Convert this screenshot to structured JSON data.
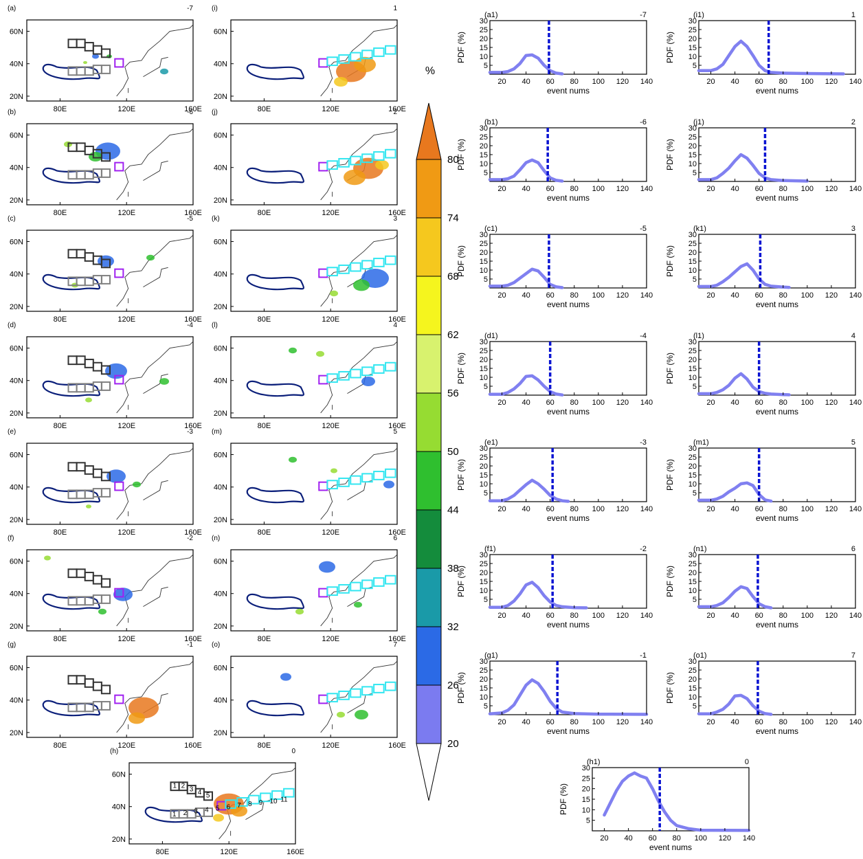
{
  "figure": {
    "map_panel_labels": [
      "(a)",
      "(b)",
      "(c)",
      "(d)",
      "(e)",
      "(f)",
      "(g)",
      "(i)",
      "(j)",
      "(k)",
      "(l)",
      "(m)",
      "(n)",
      "(o)",
      "(h)"
    ],
    "map_panel_days": [
      "-7",
      "-6",
      "-5",
      "-4",
      "-3",
      "-2",
      "-1",
      "1",
      "2",
      "3",
      "4",
      "5",
      "6",
      "7",
      "0"
    ],
    "map_lat_ticks": [
      "60N",
      "40N",
      "20N"
    ],
    "map_lon_ticks": [
      "80E",
      "120E",
      "160E"
    ],
    "box_numbers_grey": [
      "1",
      "2",
      "3",
      "4",
      "5"
    ],
    "box_numbers_lower": [
      "1",
      "2",
      "3",
      "4",
      "5",
      "6",
      "7",
      "8",
      "9",
      "10",
      "11"
    ]
  },
  "colorbar": {
    "unit": "%",
    "levels": [
      "20",
      "26",
      "32",
      "38",
      "44",
      "50",
      "56",
      "62",
      "68",
      "74",
      "80"
    ],
    "colors": [
      "#ffffff",
      "#7b7bf0",
      "#2b6ae6",
      "#1a9aa8",
      "#148c3c",
      "#2fbf2f",
      "#96dc32",
      "#d8f26e",
      "#f5f51e",
      "#f5c81e",
      "#f09a14",
      "#e8781e"
    ]
  },
  "chart_data": {
    "type": "line",
    "xlabel": "event nums",
    "ylabel": "PDF (%)",
    "xlim": [
      10,
      140
    ],
    "ylim": [
      0,
      30
    ],
    "xticks": [
      "20",
      "40",
      "60",
      "80",
      "100",
      "120",
      "140"
    ],
    "yticks": [
      "5",
      "10",
      "15",
      "20",
      "25",
      "30"
    ],
    "line_color": "#8080f0",
    "threshold_color": "#0a14d2",
    "panels": [
      {
        "label": "(a1)",
        "day": "-7",
        "threshold": 59,
        "x": [
          10,
          20,
          25,
          30,
          35,
          40,
          45,
          50,
          55,
          60,
          65,
          70
        ],
        "y": [
          1,
          1,
          1.5,
          3,
          6,
          10.5,
          10.8,
          9,
          5,
          2,
          0.6,
          0.2
        ]
      },
      {
        "label": "(b1)",
        "day": "-6",
        "threshold": 58,
        "x": [
          10,
          20,
          25,
          30,
          35,
          40,
          45,
          50,
          55,
          60,
          65,
          70
        ],
        "y": [
          1,
          1,
          1.5,
          3,
          6.5,
          10.5,
          12,
          10.5,
          6,
          2,
          0.6,
          0.2
        ]
      },
      {
        "label": "(c1)",
        "day": "-5",
        "threshold": 59,
        "x": [
          10,
          20,
          25,
          30,
          35,
          40,
          45,
          50,
          55,
          60,
          65,
          70
        ],
        "y": [
          1,
          1,
          1.5,
          3,
          5.5,
          8,
          10.5,
          9.5,
          6,
          2,
          0.6,
          0.2
        ]
      },
      {
        "label": "(d1)",
        "day": "-4",
        "threshold": 60,
        "x": [
          10,
          20,
          25,
          30,
          35,
          40,
          45,
          50,
          55,
          60,
          65,
          70
        ],
        "y": [
          0.5,
          0.5,
          1.5,
          3.5,
          6.5,
          10.5,
          10.8,
          8.5,
          5,
          2,
          0.6,
          0.1
        ]
      },
      {
        "label": "(e1)",
        "day": "-3",
        "threshold": 62,
        "x": [
          10,
          20,
          25,
          30,
          35,
          40,
          45,
          50,
          55,
          60,
          65,
          70,
          75
        ],
        "y": [
          0.5,
          0.5,
          1.5,
          3.5,
          6.5,
          9.5,
          12,
          10,
          7,
          3.5,
          1.5,
          0.5,
          0.2
        ]
      },
      {
        "label": "(f1)",
        "day": "-2",
        "threshold": 62,
        "x": [
          10,
          20,
          25,
          30,
          35,
          40,
          45,
          50,
          55,
          60,
          65,
          70,
          80,
          90
        ],
        "y": [
          0.5,
          0.5,
          1.5,
          4,
          8,
          13,
          14.5,
          11.5,
          7,
          3.5,
          1.5,
          0.8,
          0.3,
          0.2
        ]
      },
      {
        "label": "(g1)",
        "day": "-1",
        "threshold": 66,
        "x": [
          10,
          20,
          25,
          30,
          35,
          40,
          45,
          50,
          55,
          60,
          65,
          70,
          80,
          100,
          140
        ],
        "y": [
          0.5,
          1,
          2.5,
          5.5,
          11,
          16.5,
          19.5,
          17.5,
          13,
          7.5,
          3.5,
          1.5,
          0.6,
          0.3,
          0.2
        ]
      },
      {
        "label": "(i1)",
        "day": "1",
        "threshold": 68,
        "x": [
          10,
          20,
          25,
          30,
          35,
          40,
          45,
          50,
          55,
          60,
          65,
          70,
          80,
          100,
          130
        ],
        "y": [
          2,
          2,
          3,
          5.5,
          10.5,
          15.5,
          18.5,
          15.5,
          10.5,
          5,
          2,
          1,
          0.6,
          0.4,
          0.2
        ]
      },
      {
        "label": "(j1)",
        "day": "2",
        "threshold": 65,
        "x": [
          10,
          20,
          25,
          30,
          35,
          40,
          45,
          50,
          55,
          60,
          65,
          70,
          80,
          100
        ],
        "y": [
          1,
          1,
          2,
          4.5,
          7.5,
          11.5,
          15,
          13,
          9,
          4.5,
          2,
          1,
          0.5,
          0.2
        ]
      },
      {
        "label": "(k1)",
        "day": "3",
        "threshold": 61,
        "x": [
          10,
          20,
          25,
          30,
          35,
          40,
          45,
          50,
          55,
          60,
          65,
          70,
          80,
          85
        ],
        "y": [
          0.8,
          0.8,
          1.5,
          3.5,
          6,
          9,
          12,
          13.5,
          10,
          5,
          2,
          1,
          0.5,
          0.3
        ]
      },
      {
        "label": "(l1)",
        "day": "4",
        "threshold": 60,
        "x": [
          10,
          20,
          25,
          30,
          35,
          40,
          45,
          50,
          55,
          60,
          65,
          70,
          80,
          85
        ],
        "y": [
          0.8,
          0.8,
          1.5,
          3,
          5.5,
          9.5,
          12,
          9,
          4.5,
          2,
          1,
          0.6,
          0.3,
          0.2
        ]
      },
      {
        "label": "(m1)",
        "day": "5",
        "threshold": 60,
        "x": [
          10,
          20,
          25,
          30,
          35,
          40,
          45,
          50,
          55,
          60,
          65,
          70
        ],
        "y": [
          0.8,
          0.8,
          1.5,
          3,
          5.5,
          7.5,
          10,
          10.5,
          9,
          4,
          1,
          0.3
        ]
      },
      {
        "label": "(n1)",
        "day": "6",
        "threshold": 59,
        "x": [
          10,
          20,
          25,
          30,
          35,
          40,
          45,
          50,
          55,
          60,
          65,
          70
        ],
        "y": [
          0.8,
          0.8,
          1.5,
          3,
          6,
          9.5,
          12,
          11,
          6.5,
          2.5,
          0.8,
          0.2
        ]
      },
      {
        "label": "(o1)",
        "day": "7",
        "threshold": 59,
        "x": [
          10,
          20,
          25,
          30,
          35,
          40,
          45,
          50,
          55,
          60,
          65,
          70
        ],
        "y": [
          0.5,
          0.5,
          1.5,
          3,
          6,
          10.5,
          10.8,
          9,
          5,
          2,
          0.6,
          0.2
        ]
      },
      {
        "label": "(h1)",
        "day": "0",
        "threshold": 66,
        "x": [
          20,
          30,
          35,
          40,
          45,
          50,
          55,
          60,
          65,
          70,
          75,
          80,
          90,
          100,
          140
        ],
        "y": [
          7.5,
          19,
          23.5,
          26,
          27.5,
          26,
          25,
          20,
          14,
          9,
          5,
          2.5,
          1,
          0.3,
          0.2
        ]
      }
    ]
  }
}
